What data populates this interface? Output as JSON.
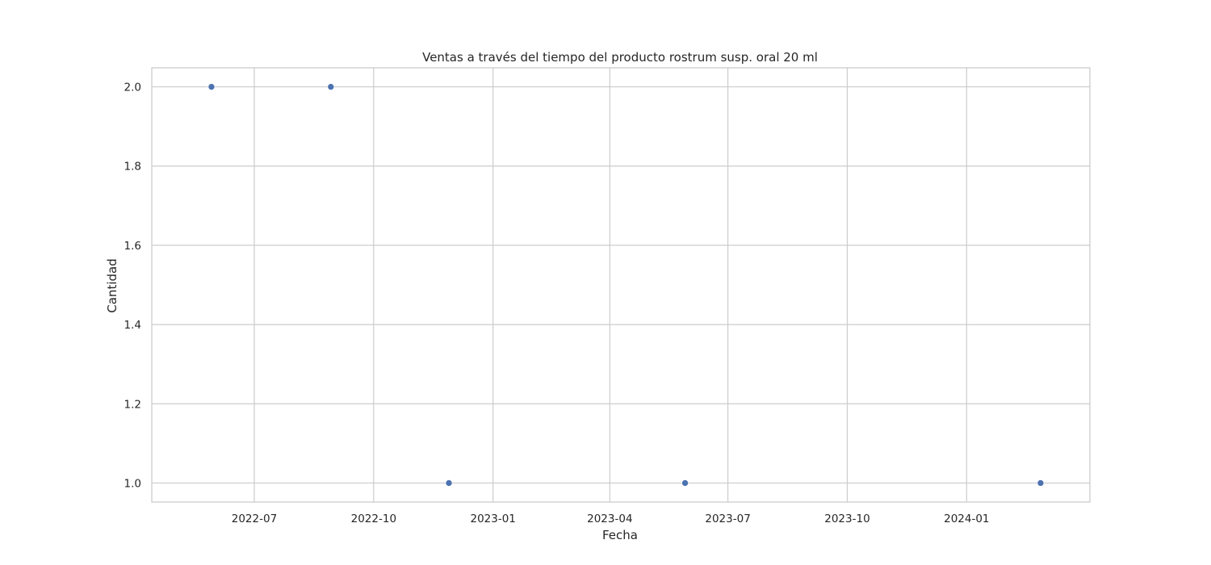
{
  "chart_data": {
    "type": "scatter",
    "title": "Ventas a través del tiempo del producto rostrum susp. oral 20 ml",
    "xlabel": "Fecha",
    "ylabel": "Cantidad",
    "x_type": "date",
    "xlim": [
      "2022-04-13",
      "2024-04-05"
    ],
    "ylim": [
      0.952,
      2.048
    ],
    "grid": true,
    "legend": "none",
    "marker_color": "#4c72b0",
    "x_ticks": [
      "2022-07-01",
      "2022-10-01",
      "2023-01-01",
      "2023-04-01",
      "2023-07-01",
      "2023-10-01",
      "2024-01-01"
    ],
    "x_tick_labels": [
      "2022-07",
      "2022-10",
      "2023-01",
      "2023-04",
      "2023-07",
      "2023-10",
      "2024-01"
    ],
    "y_ticks": [
      1.0,
      1.2,
      1.4,
      1.6,
      1.8,
      2.0
    ],
    "y_tick_labels": [
      "1.0",
      "1.2",
      "1.4",
      "1.6",
      "1.8",
      "2.0"
    ],
    "points": [
      {
        "x": "2022-05-29",
        "y": 2
      },
      {
        "x": "2022-08-29",
        "y": 2
      },
      {
        "x": "2022-11-28",
        "y": 1
      },
      {
        "x": "2023-05-29",
        "y": 1
      },
      {
        "x": "2024-02-27",
        "y": 1
      }
    ]
  }
}
